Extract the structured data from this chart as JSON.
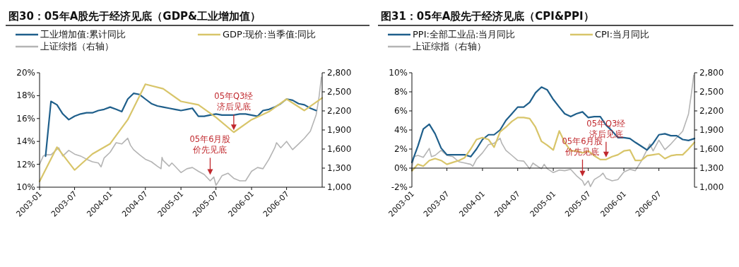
{
  "chart_data": [
    {
      "type": "line",
      "title": "图30：05年A股先于经济见底（GDP&工业增加值）",
      "xlim": [
        "2003-01",
        "2007-01"
      ],
      "xticks": [
        "2003-01",
        "2003-07",
        "2004-01",
        "2004-07",
        "2005-01",
        "2005-07",
        "2006-01",
        "2006-07"
      ],
      "ylim": [
        10,
        20
      ],
      "yticks": [
        {
          "value": 10,
          "label": "10%"
        },
        {
          "value": 12,
          "label": "12%"
        },
        {
          "value": 14,
          "label": "14%"
        },
        {
          "value": 16,
          "label": "16%"
        },
        {
          "value": 18,
          "label": "18%"
        },
        {
          "value": 20,
          "label": "20%"
        }
      ],
      "y2lim": [
        1000,
        2800
      ],
      "y2ticks": [
        {
          "value": 1000,
          "label": "1,000"
        },
        {
          "value": 1300,
          "label": "1,300"
        },
        {
          "value": 1600,
          "label": "1,600"
        },
        {
          "value": 1900,
          "label": "1,900"
        },
        {
          "value": 2200,
          "label": "2,200"
        },
        {
          "value": 2500,
          "label": "2,500"
        },
        {
          "value": 2800,
          "label": "2,800"
        }
      ],
      "legend": "top left",
      "series": [
        {
          "name": "工业增加值:累计同比",
          "color": "#1f5f8b",
          "x": [
            "2003-02",
            "2003-03",
            "2003-04",
            "2003-05",
            "2003-06",
            "2003-07",
            "2003-08",
            "2003-09",
            "2003-10",
            "2003-11",
            "2003-12",
            "2004-01",
            "2004-02",
            "2004-03",
            "2004-04",
            "2004-05",
            "2004-06",
            "2004-07",
            "2004-08",
            "2004-09",
            "2004-10",
            "2004-11",
            "2004-12",
            "2005-01",
            "2005-02",
            "2005-03",
            "2005-04",
            "2005-05",
            "2005-06",
            "2005-07",
            "2005-08",
            "2005-09",
            "2005-10",
            "2005-11",
            "2005-12",
            "2006-02",
            "2006-03",
            "2006-04",
            "2006-05",
            "2006-06",
            "2006-07",
            "2006-08",
            "2006-09",
            "2006-10",
            "2006-11",
            "2006-12"
          ],
          "values": [
            12.7,
            17.5,
            17.2,
            16.4,
            15.9,
            16.2,
            16.4,
            16.5,
            16.5,
            16.7,
            16.8,
            17.0,
            16.8,
            16.6,
            17.7,
            18.2,
            18.1,
            17.7,
            17.3,
            17.1,
            17.0,
            16.9,
            16.8,
            16.7,
            16.8,
            16.9,
            16.2,
            16.2,
            16.3,
            16.4,
            16.3,
            16.3,
            16.3,
            16.4,
            16.4,
            16.2,
            16.7,
            16.8,
            17.0,
            17.3,
            17.7,
            17.6,
            17.3,
            17.2,
            16.9,
            16.7
          ]
        },
        {
          "name": "GDP:现价:当季值:同比",
          "color": "#d8c56a",
          "x": [
            "2003-01",
            "2003-04",
            "2003-07",
            "2003-10",
            "2004-01",
            "2004-04",
            "2004-07",
            "2004-10",
            "2005-01",
            "2005-04",
            "2005-07",
            "2005-10",
            "2006-01",
            "2006-04",
            "2006-07",
            "2006-10",
            "2007-01"
          ],
          "values": [
            10.5,
            13.5,
            11.5,
            12.9,
            13.8,
            15.9,
            19.0,
            18.6,
            17.5,
            17.2,
            16.1,
            14.8,
            15.9,
            16.6,
            17.7,
            16.7,
            17.8
          ]
        },
        {
          "name": "上证综指（右轴）",
          "color": "#b4b4b4",
          "axis": "y2",
          "x": [
            "2003-01",
            "2003-01-20",
            "2003-02",
            "2003-03",
            "2003-04-10",
            "2003-05",
            "2003-06",
            "2003-07",
            "2003-08",
            "2003-09",
            "2003-10",
            "2003-11",
            "2003-11-15",
            "2003-12",
            "2004-01",
            "2004-02",
            "2004-03",
            "2004-04",
            "2004-04-15",
            "2004-05",
            "2004-06",
            "2004-07",
            "2004-08",
            "2004-09",
            "2004-09-20",
            "2004-09-25",
            "2004-10",
            "2004-11",
            "2004-11-15",
            "2004-12",
            "2005-01",
            "2005-02",
            "2005-03",
            "2005-04",
            "2005-05",
            "2005-06",
            "2005-06-20",
            "2005-07",
            "2005-07-10",
            "2005-08",
            "2005-09",
            "2005-10",
            "2005-11",
            "2005-12",
            "2006-01",
            "2006-02",
            "2006-03",
            "2006-04",
            "2006-05",
            "2006-05-10",
            "2006-06",
            "2006-07",
            "2006-08",
            "2006-09",
            "2006-10",
            "2006-11",
            "2006-12",
            "2006-12-15",
            "2006-12-28"
          ],
          "values": [
            1360,
            1490,
            1510,
            1510,
            1620,
            1490,
            1580,
            1520,
            1490,
            1440,
            1400,
            1380,
            1320,
            1460,
            1550,
            1700,
            1680,
            1770,
            1660,
            1590,
            1510,
            1440,
            1400,
            1330,
            1290,
            1470,
            1420,
            1330,
            1380,
            1330,
            1230,
            1290,
            1310,
            1250,
            1200,
            1100,
            1160,
            1030,
            1070,
            1180,
            1220,
            1140,
            1100,
            1100,
            1250,
            1310,
            1290,
            1440,
            1620,
            1700,
            1620,
            1720,
            1590,
            1680,
            1770,
            1880,
            2140,
            2400,
            2730
          ]
        }
      ],
      "annotations": [
        {
          "text": "05年Q3经济后见底",
          "x": "2005-10",
          "y": 14.8
        },
        {
          "text": "05年6月股价先见底",
          "x": "2005-06",
          "y": 10.9
        }
      ]
    },
    {
      "type": "line",
      "title": "图31：05年A股先于经济见底（CPI&PPI）",
      "xlim": [
        "2003-01",
        "2007-01"
      ],
      "xticks": [
        "2003-01",
        "2003-07",
        "2004-01",
        "2004-07",
        "2005-01",
        "2005-07",
        "2006-01",
        "2006-07"
      ],
      "ylim": [
        -2,
        10
      ],
      "yticks": [
        {
          "value": -2,
          "label": "-2%"
        },
        {
          "value": 0,
          "label": "0%"
        },
        {
          "value": 2,
          "label": "2%"
        },
        {
          "value": 4,
          "label": "4%"
        },
        {
          "value": 6,
          "label": "6%"
        },
        {
          "value": 8,
          "label": "8%"
        },
        {
          "value": 10,
          "label": "10%"
        }
      ],
      "y2lim": [
        1000,
        2800
      ],
      "y2ticks": [
        {
          "value": 1000,
          "label": "1,000"
        },
        {
          "value": 1300,
          "label": "1,300"
        },
        {
          "value": 1600,
          "label": "1,600"
        },
        {
          "value": 1900,
          "label": "1,900"
        },
        {
          "value": 2200,
          "label": "2,200"
        },
        {
          "value": 2500,
          "label": "2,500"
        },
        {
          "value": 2800,
          "label": "2,800"
        }
      ],
      "legend": "top left",
      "series": [
        {
          "name": "PPI:全部工业品:当月同比",
          "color": "#1f5f8b",
          "x": [
            "2003-01",
            "2003-02",
            "2003-03",
            "2003-04",
            "2003-05",
            "2003-06",
            "2003-07",
            "2003-08",
            "2003-09",
            "2003-10",
            "2003-11",
            "2003-12",
            "2004-01",
            "2004-02",
            "2004-03",
            "2004-04",
            "2004-05",
            "2004-06",
            "2004-07",
            "2004-08",
            "2004-09",
            "2004-10",
            "2004-11",
            "2004-12",
            "2005-01",
            "2005-02",
            "2005-03",
            "2005-04",
            "2005-05",
            "2005-06",
            "2005-07",
            "2005-08",
            "2005-09",
            "2005-10",
            "2005-11",
            "2005-12",
            "2006-01",
            "2006-02",
            "2006-03",
            "2006-04",
            "2006-05",
            "2006-06",
            "2006-07",
            "2006-08",
            "2006-09",
            "2006-10",
            "2006-11",
            "2006-12",
            "2007-01"
          ],
          "values": [
            0.6,
            2.3,
            4.1,
            4.6,
            3.6,
            2.1,
            1.4,
            1.4,
            1.4,
            1.4,
            1.2,
            2.0,
            3.0,
            3.5,
            3.5,
            4.0,
            5.0,
            5.7,
            6.4,
            6.4,
            6.9,
            7.9,
            8.5,
            8.2,
            7.2,
            6.4,
            5.7,
            5.4,
            5.7,
            5.9,
            5.3,
            5.4,
            5.4,
            4.5,
            3.9,
            3.2,
            3.2,
            3.1,
            2.7,
            2.3,
            1.9,
            2.6,
            3.5,
            3.6,
            3.4,
            3.4,
            3.0,
            2.9,
            3.1
          ]
        },
        {
          "name": "CPI:当月同比",
          "color": "#d8c56a",
          "x": [
            "2003-01",
            "2003-02",
            "2003-03",
            "2003-04",
            "2003-05",
            "2003-06",
            "2003-07",
            "2003-08",
            "2003-09",
            "2003-10",
            "2003-11",
            "2003-12",
            "2004-01",
            "2004-02",
            "2004-03",
            "2004-04",
            "2004-05",
            "2004-06",
            "2004-07",
            "2004-08",
            "2004-09",
            "2004-10",
            "2004-11",
            "2004-12",
            "2005-01",
            "2005-02",
            "2005-03",
            "2005-04",
            "2005-05",
            "2005-06",
            "2005-07",
            "2005-08",
            "2005-09",
            "2005-10",
            "2005-11",
            "2005-12",
            "2006-01",
            "2006-02",
            "2006-03",
            "2006-04",
            "2006-05",
            "2006-06",
            "2006-07",
            "2006-08",
            "2006-09",
            "2006-10",
            "2006-11",
            "2006-12",
            "2007-01"
          ],
          "values": [
            -0.3,
            0.4,
            0.2,
            0.8,
            1.0,
            0.8,
            0.4,
            0.6,
            0.8,
            1.1,
            2.0,
            3.0,
            3.2,
            3.0,
            2.2,
            3.8,
            4.3,
            4.9,
            5.3,
            5.3,
            5.2,
            4.3,
            2.8,
            2.4,
            1.9,
            3.9,
            2.7,
            1.8,
            1.8,
            1.6,
            1.8,
            1.3,
            0.9,
            0.9,
            1.2,
            1.4,
            1.8,
            1.9,
            0.8,
            0.8,
            1.3,
            1.4,
            1.5,
            1.0,
            1.3,
            1.4,
            1.4,
            2.0,
            2.7
          ]
        },
        {
          "name": "上证综指（右轴）",
          "color": "#b4b4b4",
          "axis": "y2",
          "x": [
            "2003-01",
            "2003-01-12",
            "2003-02",
            "2003-03",
            "2003-04",
            "2003-04-12",
            "2003-05",
            "2003-06",
            "2003-07",
            "2003-08",
            "2003-09",
            "2003-10",
            "2003-11",
            "2003-11-12",
            "2003-12",
            "2004-01",
            "2004-02",
            "2004-03",
            "2004-04",
            "2004-04-10",
            "2004-05",
            "2004-06",
            "2004-07",
            "2004-08",
            "2004-09",
            "2004-09-18",
            "2004-10",
            "2004-11",
            "2004-11-15",
            "2004-12",
            "2005-01",
            "2005-02",
            "2005-03",
            "2005-04",
            "2005-05",
            "2005-06",
            "2005-06-12",
            "2005-07",
            "2005-07-12",
            "2005-08",
            "2005-09",
            "2005-09-15",
            "2005-10",
            "2005-11",
            "2005-12",
            "2006-01",
            "2006-02",
            "2006-03",
            "2006-04",
            "2006-05",
            "2006-05-15",
            "2006-06",
            "2006-07",
            "2006-08",
            "2006-09",
            "2006-10",
            "2006-11",
            "2006-12",
            "2006-12-15",
            "2006-12-28"
          ],
          "values": [
            1310,
            1480,
            1500,
            1470,
            1610,
            1480,
            1500,
            1580,
            1500,
            1480,
            1400,
            1380,
            1360,
            1330,
            1440,
            1540,
            1670,
            1690,
            1770,
            1690,
            1580,
            1500,
            1420,
            1410,
            1290,
            1380,
            1350,
            1290,
            1360,
            1290,
            1230,
            1270,
            1260,
            1280,
            1180,
            1100,
            1030,
            1100,
            1010,
            1120,
            1180,
            1220,
            1140,
            1100,
            1120,
            1240,
            1280,
            1260,
            1410,
            1590,
            1680,
            1570,
            1740,
            1590,
            1680,
            1780,
            1880,
            2150,
            2450,
            2760
          ]
        }
      ],
      "annotations": [
        {
          "text": "05年6月股价先见底",
          "x": "2005-06",
          "y": -1.1
        },
        {
          "text": "05年Q3经济后见底",
          "x": "2005-10",
          "y": 0.9
        }
      ]
    }
  ]
}
